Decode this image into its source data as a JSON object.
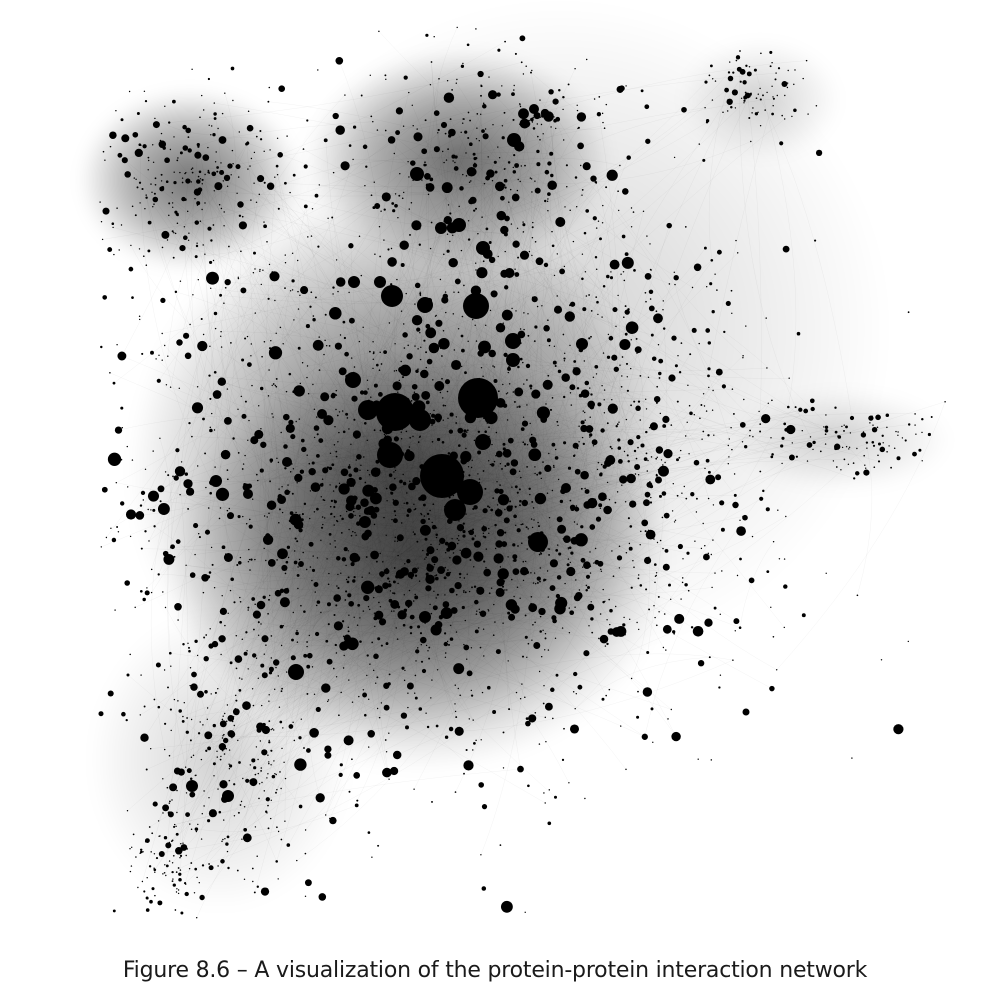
{
  "figure": {
    "caption": "Figure 8.6 – A visualization of the protein-protein interaction network"
  },
  "style": {
    "background": "#ffffff",
    "node_color": "#000000",
    "edge_color": "#000000"
  }
}
